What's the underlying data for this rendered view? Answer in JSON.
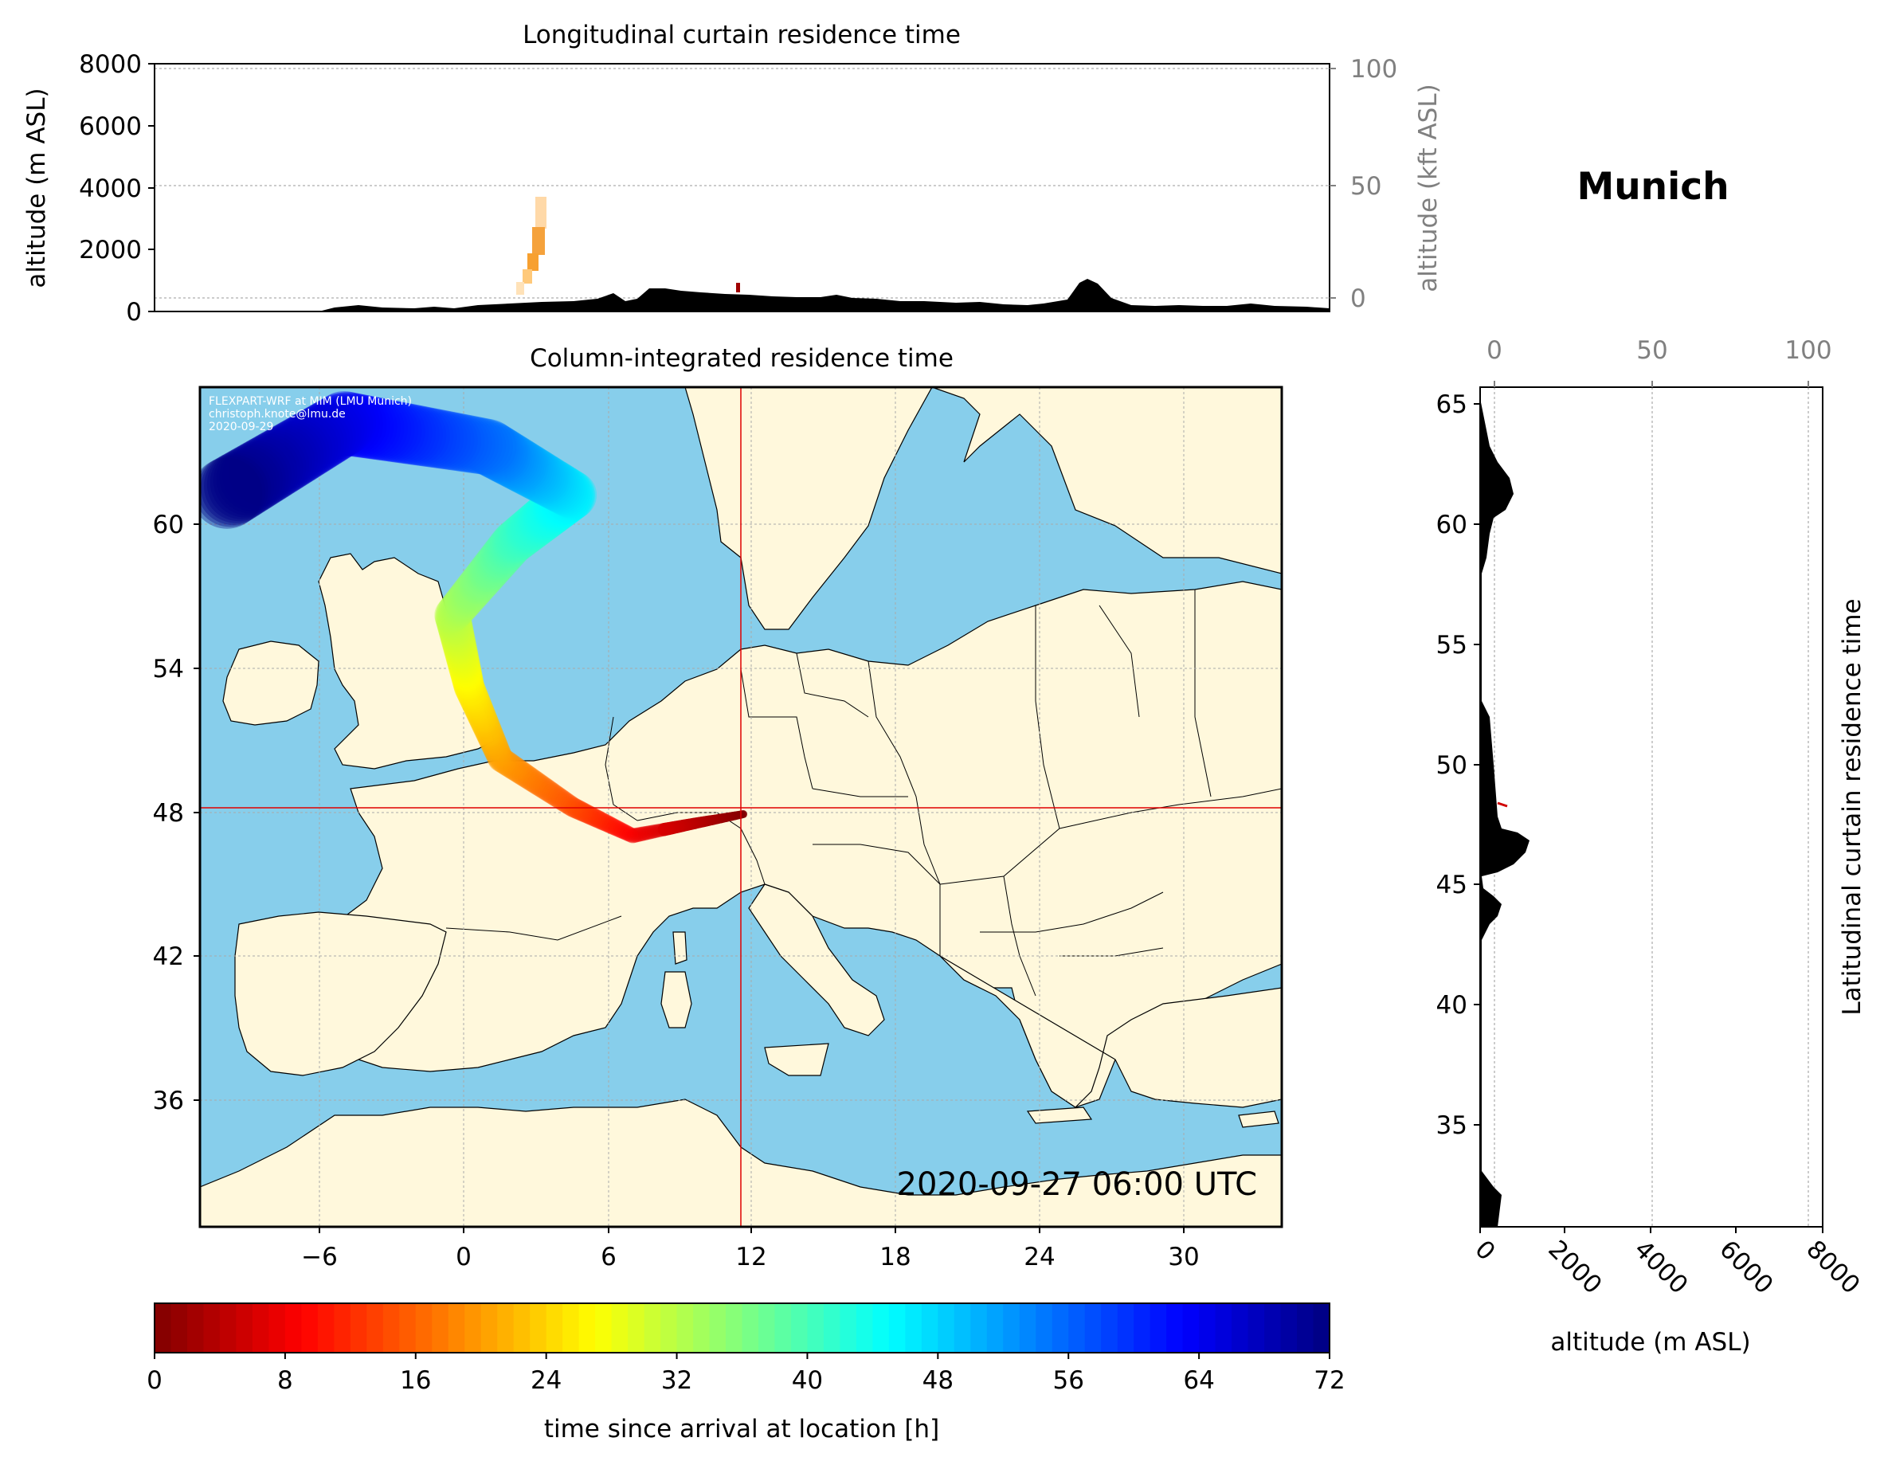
{
  "location_name": "Munich",
  "colors": {
    "sea": "#87ceeb",
    "land": "#fff8dc",
    "crosshair": "#e00000",
    "terrain": "#000000"
  },
  "top_panel": {
    "title": "Longitudinal curtain residence time",
    "ylabel_left": "altitude (m ASL)",
    "ylabel_right": "altitude (kft ASL)",
    "yticks_left": [
      "0",
      "2000",
      "4000",
      "6000",
      "8000"
    ],
    "yticks_right": [
      "0",
      "50",
      "100"
    ]
  },
  "map_panel": {
    "title": "Column-integrated residence time",
    "timestamp": "2020-09-27 06:00 UTC",
    "credit_lines": [
      "FLEXPART-WRF at MIM (LMU Munich)",
      "christoph.knote@lmu.de",
      "2020-09-29"
    ],
    "xticks": [
      "−6",
      "0",
      "6",
      "12",
      "18",
      "24",
      "30"
    ],
    "yticks": [
      "60",
      "54",
      "48",
      "42",
      "36"
    ]
  },
  "side_panel": {
    "ylabel": "Latitudinal curtain residence time",
    "xlabel": "altitude (m ASL)",
    "yticks": [
      "65",
      "60",
      "55",
      "50",
      "45",
      "40",
      "35"
    ],
    "xticks_bottom": [
      "0",
      "2000",
      "4000",
      "6000",
      "8000"
    ],
    "xticks_top": [
      "0",
      "50",
      "100"
    ]
  },
  "colorbar": {
    "label": "time since arrival at location [h]",
    "ticks": [
      "0",
      "8",
      "16",
      "24",
      "32",
      "40",
      "48",
      "56",
      "64",
      "72"
    ],
    "colormap": "jet_r"
  },
  "chart_data": [
    {
      "type": "heatmap",
      "title": "Column-integrated residence time",
      "x": "longitude",
      "y": "latitude",
      "xlim": [
        -11,
        34
      ],
      "ylim": [
        31,
        66
      ],
      "xticks": [
        -6,
        0,
        6,
        12,
        18,
        24,
        30
      ],
      "yticks": [
        60,
        54,
        48,
        42,
        36
      ],
      "receptor": {
        "lon": 11.6,
        "lat": 48.1
      },
      "trajectory_hours": [
        {
          "lon": 11.6,
          "lat": 48.2,
          "hours": 0
        },
        {
          "lon": 9.5,
          "lat": 47.8,
          "hours": 4
        },
        {
          "lon": 7.0,
          "lat": 47.3,
          "hours": 8
        },
        {
          "lon": 4.5,
          "lat": 48.5,
          "hours": 14
        },
        {
          "lon": 1.5,
          "lat": 50.5,
          "hours": 20
        },
        {
          "lon": 0.2,
          "lat": 53.5,
          "hours": 26
        },
        {
          "lon": -0.5,
          "lat": 56.5,
          "hours": 32
        },
        {
          "lon": 2.0,
          "lat": 59.5,
          "hours": 40
        },
        {
          "lon": 4.5,
          "lat": 61.5,
          "hours": 46
        },
        {
          "lon": 1.0,
          "lat": 63.5,
          "hours": 55
        },
        {
          "lon": -5.0,
          "lat": 64.5,
          "hours": 64
        },
        {
          "lon": -10.0,
          "lat": 61.5,
          "hours": 72
        }
      ],
      "grid": true
    },
    {
      "type": "area",
      "title": "Longitudinal curtain residence time",
      "ylabel": "altitude (m ASL)",
      "ylim": [
        0,
        8000
      ],
      "secondary_ylabel": "altitude (kft ASL)",
      "secondary_ylim": [
        0,
        100
      ],
      "grid": true
    },
    {
      "type": "area",
      "ylabel": "Latitudinal curtain residence time",
      "xlabel": "altitude (m ASL)",
      "xlim": [
        0,
        8000
      ],
      "ylim": [
        31,
        66
      ],
      "secondary_xlim": [
        0,
        100
      ],
      "grid": true
    }
  ]
}
